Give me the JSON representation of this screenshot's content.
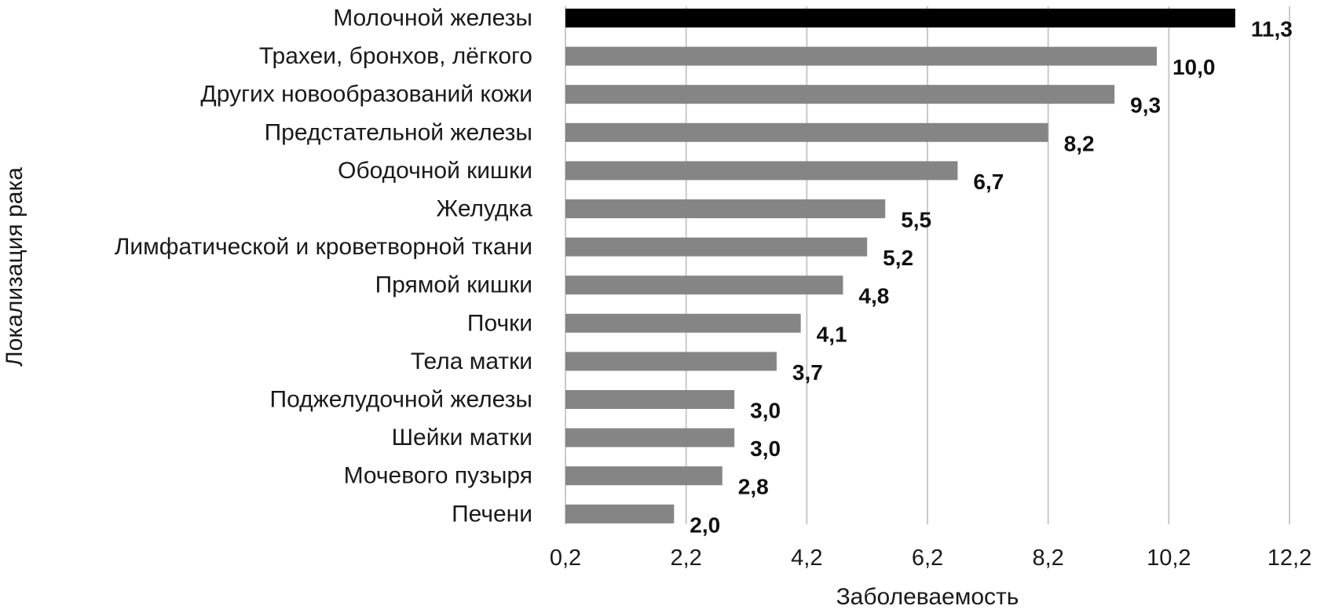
{
  "chart_data": {
    "type": "bar",
    "orientation": "horizontal",
    "categories": [
      "Молочной железы",
      "Трахеи, бронхов, лёгкого",
      "Других новообразований кожи",
      "Предстательной железы",
      "Ободочной кишки",
      "Желудка",
      "Лимфатической и кроветворной ткани",
      "Прямой кишки",
      "Почки",
      "Тела матки",
      "Поджелудочной железы",
      "Шейки матки",
      "Мочевого пузыря",
      "Печени"
    ],
    "values": [
      11.3,
      10.0,
      9.3,
      8.2,
      6.7,
      5.5,
      5.2,
      4.8,
      4.1,
      3.7,
      3.0,
      3.0,
      2.8,
      2.0
    ],
    "value_labels": [
      "11,3",
      "10,0",
      "9,3",
      "8,2",
      "6,7",
      "5,5",
      "5,2",
      "4,8",
      "4,1",
      "3,7",
      "3,0",
      "3,0",
      "2,8",
      "2,0"
    ],
    "xlabel": "Заболеваемость",
    "ylabel": "Локализация рака",
    "xlim": [
      0.2,
      12.2
    ],
    "x_ticks": [
      0.2,
      2.2,
      4.2,
      6.2,
      8.2,
      10.2,
      12.2
    ],
    "x_tick_labels": [
      "0,2",
      "2,2",
      "4,2",
      "6,2",
      "8,2",
      "10,2",
      "12,2"
    ],
    "grid": "vertical",
    "colors": {
      "highlight": "#000000",
      "default": "#858585"
    },
    "highlight_index": 0
  }
}
